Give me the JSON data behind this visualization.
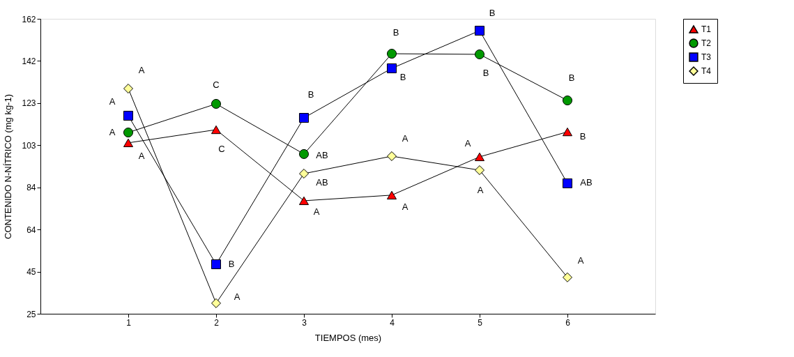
{
  "chart_data": {
    "type": "line",
    "xlabel": "TIEMPOS (mes)",
    "ylabel": "CONTENIDO N-NÍTRICO (mg kg-1)",
    "x": [
      1,
      2,
      3,
      4,
      5,
      6
    ],
    "series": [
      {
        "name": "T1",
        "color": "#ff0000",
        "marker": "triangle",
        "values": [
          104.4,
          110.5,
          77.5,
          80.1,
          97.9,
          109.5
        ],
        "value_labels": [
          "A",
          "C",
          "A",
          "A",
          "A",
          "B"
        ]
      },
      {
        "name": "T2",
        "color": "#009900",
        "marker": "circle",
        "values": [
          109.2,
          122.5,
          99.2,
          145.8,
          145.5,
          124.1
        ],
        "value_labels": [
          "A",
          "C",
          "AB",
          "B",
          "B",
          "B"
        ]
      },
      {
        "name": "T3",
        "color": "#0000ff",
        "marker": "square",
        "values": [
          117.0,
          48.0,
          116.0,
          139.0,
          156.5,
          85.6
        ],
        "value_labels": [
          "A",
          "B",
          "B",
          "B",
          "B",
          "AB"
        ]
      },
      {
        "name": "T4",
        "color": "#ffff99",
        "marker": "diamond",
        "values": [
          129.6,
          29.9,
          90.1,
          98.2,
          91.7,
          41.9
        ],
        "value_labels": [
          "A",
          "A",
          "AB",
          "A",
          "A",
          "A"
        ]
      }
    ],
    "xlim": [
      0,
      7
    ],
    "xticks": [
      1,
      2,
      3,
      4,
      5,
      6
    ],
    "ylim": [
      25,
      162
    ],
    "yticks": [
      25,
      {
        "value": 44.57,
        "label": "45"
      },
      {
        "value": 64.14,
        "label": "64"
      },
      {
        "value": 83.71,
        "label": "84"
      },
      {
        "value": 103.29,
        "label": "103"
      },
      {
        "value": 122.86,
        "label": "123"
      },
      {
        "value": 142.43,
        "label": "142"
      },
      162
    ],
    "grid": false,
    "legend": "top right",
    "line_style": "solid"
  }
}
